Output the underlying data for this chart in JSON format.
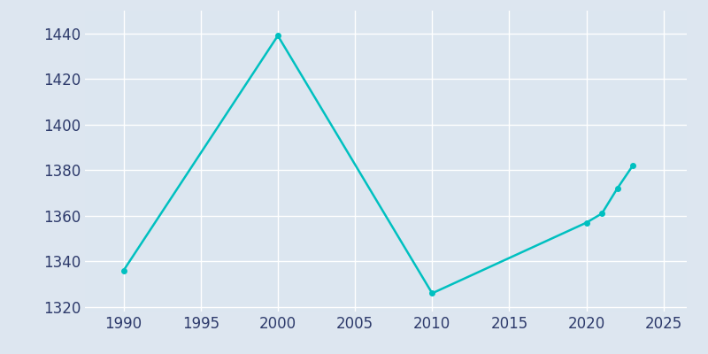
{
  "years": [
    1990,
    2000,
    2010,
    2020,
    2021,
    2022,
    2023
  ],
  "population": [
    1336,
    1439,
    1326,
    1357,
    1361,
    1372,
    1382
  ],
  "line_color": "#00c0c0",
  "background_color": "#dde6f0",
  "axes_background_color": "#dce6f0",
  "grid_color": "#ffffff",
  "text_color": "#2d3a6b",
  "xlim": [
    1987.5,
    2026.5
  ],
  "ylim": [
    1318,
    1450
  ],
  "xticks": [
    1990,
    1995,
    2000,
    2005,
    2010,
    2015,
    2020,
    2025
  ],
  "yticks": [
    1320,
    1340,
    1360,
    1380,
    1400,
    1420,
    1440
  ],
  "linewidth": 1.8,
  "marker": "o",
  "markersize": 4,
  "tick_labelsize": 12
}
